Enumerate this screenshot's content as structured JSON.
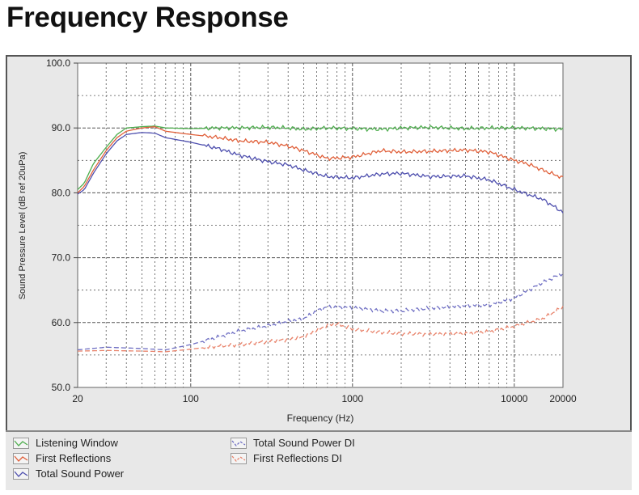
{
  "title": "Frequency Response",
  "chart_data": {
    "type": "line",
    "title": "",
    "xlabel": "Frequency (Hz)",
    "ylabel": "Sound Pressure Level (dB ref 20uPa)",
    "xscale": "log",
    "xlim": [
      20,
      20000
    ],
    "ylim": [
      50,
      100
    ],
    "xticks": [
      20,
      100,
      1000,
      10000,
      20000
    ],
    "xtick_labels": [
      "20",
      "100",
      "1000",
      "10000",
      "20000"
    ],
    "yticks": [
      50,
      60,
      70,
      80,
      90,
      100
    ],
    "ytick_labels": [
      "50.0",
      "60.0",
      "70.0",
      "80.0",
      "90.0",
      "100.0"
    ],
    "grid": true,
    "legend_position": "bottom",
    "series": [
      {
        "name": "Listening Window",
        "color": "#4fae4f",
        "dashed": false,
        "x": [
          20,
          22,
          25,
          30,
          35,
          40,
          50,
          60,
          70,
          100,
          150,
          200,
          300,
          400,
          500,
          700,
          1000,
          1500,
          2000,
          3000,
          5000,
          7000,
          10000,
          15000,
          20000
        ],
        "y": [
          80.5,
          81.5,
          84.5,
          87.0,
          89.0,
          90.0,
          90.2,
          90.3,
          90.0,
          89.9,
          90.0,
          90.0,
          90.1,
          90.0,
          89.8,
          90.0,
          89.9,
          89.8,
          90.0,
          90.1,
          89.9,
          90.0,
          90.0,
          89.9,
          89.8
        ]
      },
      {
        "name": "First Reflections",
        "color": "#e0603a",
        "dashed": false,
        "x": [
          20,
          22,
          25,
          30,
          35,
          40,
          50,
          60,
          70,
          100,
          150,
          200,
          300,
          400,
          500,
          700,
          1000,
          1500,
          2000,
          3000,
          5000,
          7000,
          10000,
          12000,
          15000,
          20000
        ],
        "y": [
          80.0,
          81.0,
          83.5,
          86.5,
          88.5,
          89.5,
          90.0,
          90.2,
          89.5,
          89.0,
          88.5,
          88.0,
          87.8,
          87.2,
          86.5,
          85.3,
          85.5,
          86.5,
          86.3,
          86.4,
          86.6,
          86.3,
          85.0,
          84.5,
          83.5,
          82.3
        ]
      },
      {
        "name": "Total Sound Power",
        "color": "#4e4fae",
        "dashed": false,
        "x": [
          20,
          22,
          25,
          30,
          35,
          40,
          50,
          60,
          70,
          100,
          150,
          200,
          300,
          400,
          500,
          700,
          1000,
          1500,
          2000,
          3000,
          5000,
          7000,
          10000,
          12000,
          15000,
          20000
        ],
        "y": [
          79.8,
          80.5,
          83.0,
          86.0,
          88.0,
          89.0,
          89.3,
          89.2,
          88.5,
          87.8,
          86.8,
          85.8,
          84.8,
          84.3,
          83.5,
          82.5,
          82.3,
          82.9,
          83.0,
          82.5,
          82.6,
          82.0,
          80.5,
          79.8,
          79.0,
          77.0
        ]
      },
      {
        "name": "Total Sound Power DI",
        "color": "#6f6fc3",
        "dashed": true,
        "x": [
          20,
          30,
          50,
          70,
          100,
          150,
          200,
          300,
          400,
          500,
          600,
          700,
          1000,
          1500,
          2000,
          3000,
          5000,
          7000,
          10000,
          15000,
          20000
        ],
        "y": [
          55.8,
          56.2,
          56.0,
          55.8,
          56.6,
          57.8,
          58.7,
          59.5,
          60.2,
          60.6,
          61.8,
          62.4,
          62.3,
          61.8,
          61.8,
          62.2,
          62.6,
          62.7,
          63.8,
          66.2,
          67.6
        ]
      },
      {
        "name": "First Reflections DI",
        "color": "#e8826a",
        "dashed": true,
        "x": [
          20,
          30,
          50,
          70,
          100,
          150,
          200,
          300,
          400,
          500,
          600,
          700,
          800,
          1000,
          1500,
          2000,
          3000,
          5000,
          7000,
          10000,
          15000,
          20000
        ],
        "y": [
          55.6,
          55.7,
          55.6,
          55.5,
          55.9,
          56.4,
          56.6,
          57.1,
          57.4,
          57.8,
          58.8,
          59.6,
          59.8,
          59.0,
          58.5,
          58.3,
          58.2,
          58.3,
          58.6,
          59.4,
          60.6,
          62.4
        ]
      }
    ]
  },
  "colors": {
    "panel_bg": "#e8e8e8",
    "plot_bg": "#ffffff",
    "grid": "#555555"
  }
}
